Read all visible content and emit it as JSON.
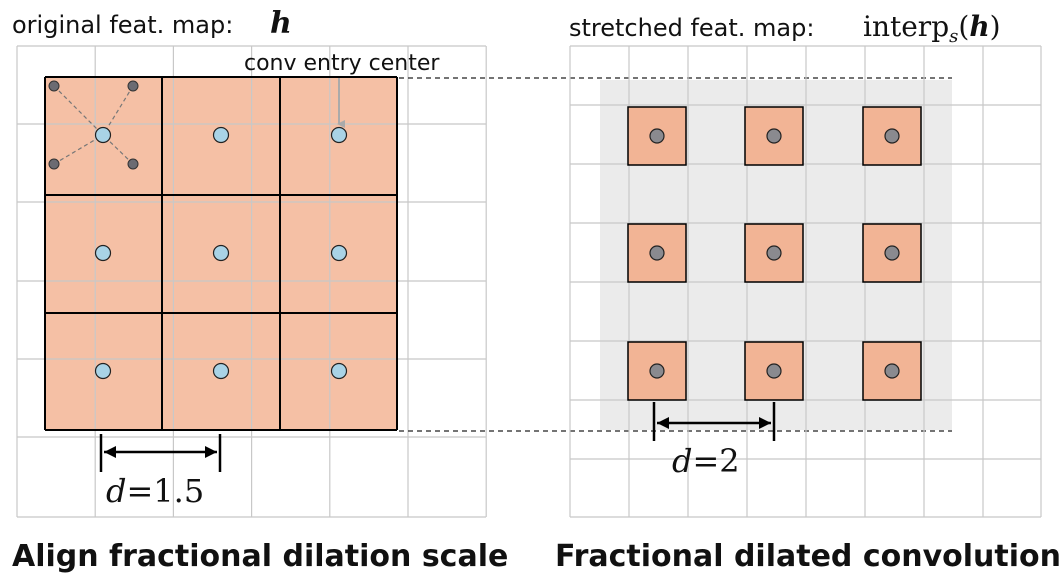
{
  "left_panel": {
    "title_prefix": "original feat. map:",
    "title_symbol": "h",
    "annotation": "conv entry center",
    "dilation_symbol": "d",
    "dilation_eq": "=1.5",
    "caption": "Align fractional dilation scale"
  },
  "right_panel": {
    "title_prefix": "stretched feat. map:",
    "title_func": "interp",
    "title_sub": "s",
    "title_open": "(",
    "title_symbol": "h",
    "title_close": ")",
    "dilation_symbol": "d",
    "dilation_eq": "=2",
    "caption": "Fractional dilated convolution"
  },
  "colors": {
    "kernel_fill": "#f5c0a5",
    "kernel_cell_fill": "#f2b495",
    "center_dot": "#a9d3e6",
    "sample_dot": "#8a8a8f",
    "stretch_bg": "#ebebeb",
    "grid": "#c8c8c8"
  }
}
